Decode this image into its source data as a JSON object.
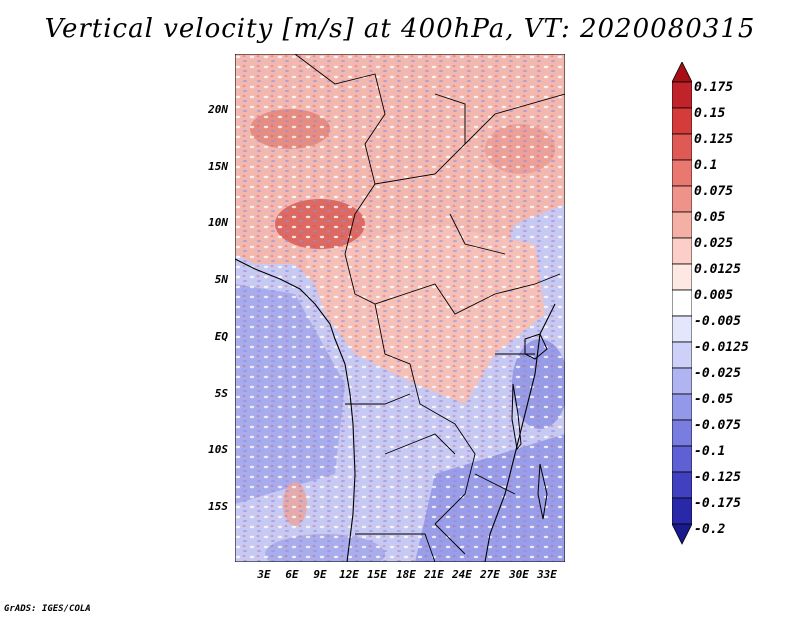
{
  "title": "Vertical velocity [m/s] at 400hPa, VT: 2020080315",
  "credit": "GrADS: IGES/COLA",
  "lat_labels": [
    "20N",
    "15N",
    "10N",
    "5N",
    "EQ",
    "5S",
    "10S",
    "15S"
  ],
  "lon_labels": [
    "3E",
    "6E",
    "9E",
    "12E",
    "15E",
    "18E",
    "21E",
    "24E",
    "27E",
    "30E",
    "33E"
  ],
  "colorbar": {
    "labels": [
      "0.175",
      "0.15",
      "0.125",
      "0.1",
      "0.075",
      "0.05",
      "0.025",
      "0.0125",
      "0.005",
      "-0.005",
      "-0.0125",
      "-0.025",
      "-0.05",
      "-0.075",
      "-0.1",
      "-0.125",
      "-0.175",
      "-0.2"
    ],
    "colors": [
      "#a50f15",
      "#c0242a",
      "#d43c3c",
      "#e05a55",
      "#e87870",
      "#ef938a",
      "#f5b0a6",
      "#fbcfc7",
      "#fde8e3",
      "#ffffff",
      "#e4e6fb",
      "#cdd0f7",
      "#b0b4f0",
      "#9498e8",
      "#7a7de0",
      "#5e60d4",
      "#4040c0",
      "#2828a8",
      "#1a1a8c"
    ]
  }
}
